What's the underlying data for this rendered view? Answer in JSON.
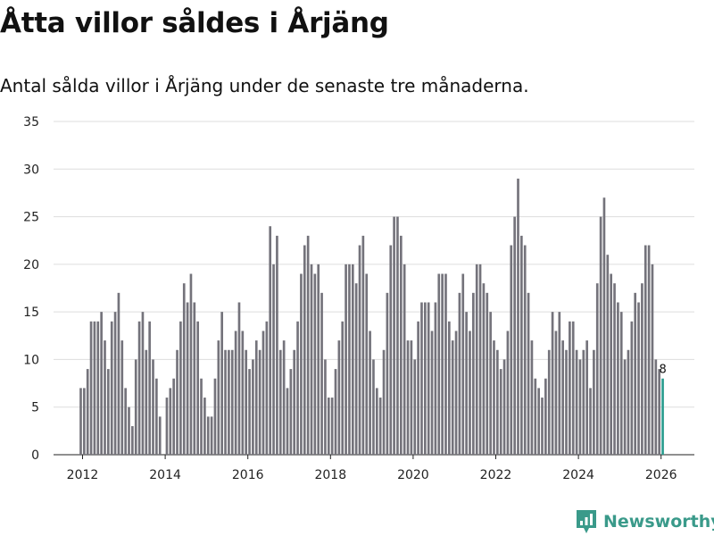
{
  "title": "Åtta villor såldes i Årjäng",
  "subtitle": "Antal sålda villor i Årjäng under de senaste tre månaderna.",
  "brand": {
    "name": "Newsworthy"
  },
  "colors": {
    "bar": "#74737b",
    "highlight": "#2a9d8f",
    "grid": "#dddddd",
    "brand": "#3a9a8a"
  },
  "chart_data": {
    "type": "bar",
    "title": "Åtta villor såldes i Årjäng",
    "xlabel": "",
    "ylabel": "",
    "ylim": [
      0,
      35
    ],
    "yticks": [
      0,
      5,
      10,
      15,
      20,
      25,
      30,
      35
    ],
    "xticks": [
      2012,
      2014,
      2016,
      2018,
      2020,
      2022,
      2024,
      2026
    ],
    "x_start": 2011.917,
    "x_step": 0.0833333,
    "values": [
      7,
      7,
      9,
      14,
      14,
      14,
      15,
      12,
      9,
      14,
      15,
      17,
      12,
      7,
      5,
      3,
      10,
      14,
      15,
      11,
      14,
      10,
      8,
      4,
      0,
      6,
      7,
      8,
      11,
      14,
      18,
      16,
      19,
      16,
      14,
      8,
      6,
      4,
      4,
      8,
      12,
      15,
      11,
      11,
      11,
      13,
      16,
      13,
      11,
      9,
      10,
      12,
      11,
      13,
      14,
      24,
      20,
      23,
      11,
      12,
      7,
      9,
      11,
      14,
      19,
      22,
      23,
      20,
      19,
      20,
      17,
      10,
      6,
      6,
      9,
      12,
      14,
      20,
      20,
      20,
      18,
      22,
      23,
      19,
      13,
      10,
      7,
      6,
      11,
      17,
      22,
      25,
      25,
      23,
      20,
      12,
      12,
      10,
      14,
      16,
      16,
      16,
      13,
      16,
      19,
      19,
      19,
      14,
      12,
      13,
      17,
      19,
      15,
      13,
      17,
      20,
      20,
      18,
      17,
      15,
      12,
      11,
      9,
      10,
      13,
      22,
      25,
      29,
      23,
      22,
      17,
      12,
      8,
      7,
      6,
      8,
      11,
      15,
      13,
      15,
      12,
      11,
      14,
      14,
      11,
      10,
      11,
      12,
      7,
      11,
      18,
      25,
      27,
      21,
      19,
      18,
      16,
      15,
      10,
      11,
      14,
      17,
      16,
      18,
      22,
      22,
      20,
      10,
      9,
      8
    ],
    "highlight_last": true,
    "annotation": {
      "label": "8",
      "value": 8
    }
  }
}
